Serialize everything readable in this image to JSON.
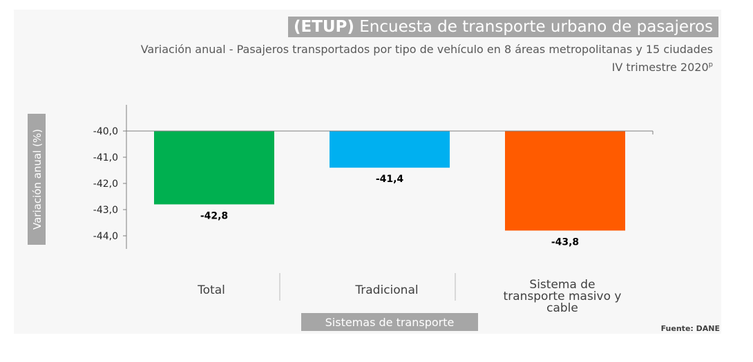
{
  "header": {
    "title_bold": "(ETUP)",
    "title_rest": "Encuesta de transporte urbano de pasajeros",
    "subtitle": "Variación anual - Pasajeros transportados por tipo de vehículo en 8 áreas metropolitanas y 15 ciudades",
    "period": "IV trimestre 2020",
    "period_mark": "p"
  },
  "source": "Fuente: DANE",
  "chart_data": {
    "type": "bar",
    "title": "(ETUP) Encuesta de transporte urbano de pasajeros",
    "xlabel": "Sistemas de transporte",
    "ylabel": "Variación anual (%)",
    "ylim": [
      -44.5,
      -39.0
    ],
    "yticks": [
      -40.0,
      -41.0,
      -42.0,
      -43.0,
      -44.0
    ],
    "ytick_labels": [
      "-40,0",
      "-41,0",
      "-42,0",
      "-43,0",
      "-44,0"
    ],
    "baseline": -40.0,
    "categories": [
      [
        "Total"
      ],
      [
        "Tradicional"
      ],
      [
        "Sistema de",
        "transporte masivo y",
        "cable"
      ]
    ],
    "values": [
      -42.8,
      -41.4,
      -43.8
    ],
    "value_labels": [
      "-42,8",
      "-41,4",
      "-43,8"
    ],
    "colors": [
      "#00b050",
      "#00b0f0",
      "#ff5b00"
    ]
  }
}
